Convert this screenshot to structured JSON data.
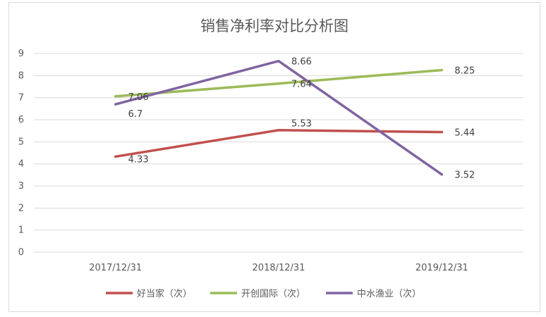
{
  "chart_data": {
    "type": "line",
    "title": "销售净利率对比分析图",
    "categories": [
      "2017/12/31",
      "2018/12/31",
      "2019/12/31"
    ],
    "ylim": [
      0,
      9
    ],
    "yticks": [
      "0",
      "1",
      "2",
      "3",
      "4",
      "5",
      "6",
      "7",
      "8",
      "9"
    ],
    "grid": true,
    "legend_position": "bottom",
    "series": [
      {
        "name": "好当家（次）",
        "color": "#c0504d",
        "values": [
          4.33,
          5.53,
          5.44
        ],
        "labels": [
          "4.33",
          "5.53",
          "5.44"
        ]
      },
      {
        "name": "开创国际（次）",
        "color": "#9bbb59",
        "values": [
          7.06,
          7.64,
          8.25
        ],
        "labels": [
          "7.06",
          "7.64",
          "8.25"
        ]
      },
      {
        "name": "中水渔业（次）",
        "color": "#8064a2",
        "values": [
          6.7,
          8.66,
          3.52
        ],
        "labels": [
          "6.7",
          "8.66",
          "3.52"
        ]
      }
    ]
  }
}
